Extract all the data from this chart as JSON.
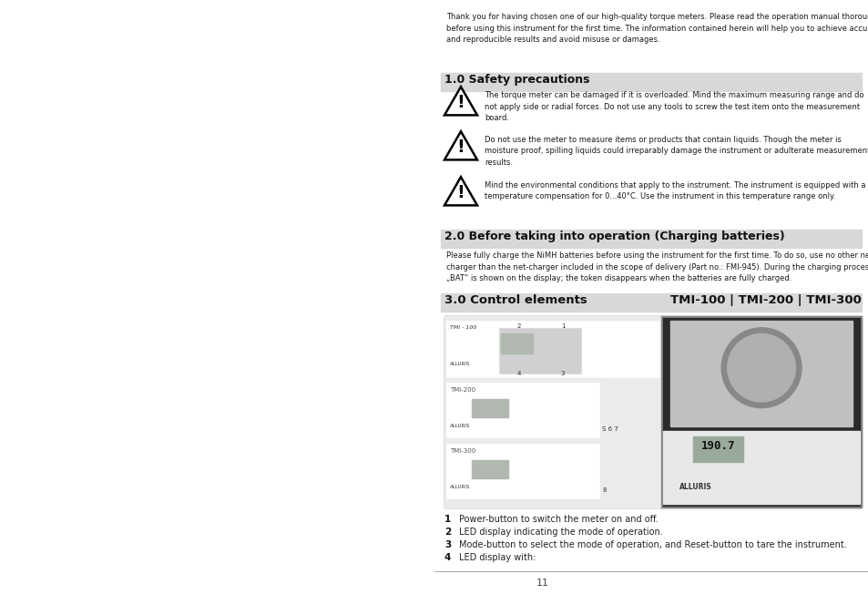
{
  "bg_color": "#ffffff",
  "page_num": "11",
  "intro_text": "Thank you for having chosen one of our high-quality torque meters. Please read the operation manual thoroughly\nbefore using this instrument for the first time. The information contained herein will help you to achieve accurate\nand reproducible results and avoid misuse or damages.",
  "section1_title": "1.0 Safety precautions",
  "section1_bg": "#d8d8d8",
  "warning1": "The torque meter can be damaged if it is overloaded. Mind the maximum measuring range and do\nnot apply side or radial forces. Do not use any tools to screw the test item onto the measurement\nboard.",
  "warning2": "Do not use the meter to measure items or products that contain liquids. Though the meter is\nmoisture proof, spilling liquids could irreparably damage the instrument or adulterate measurement\nresults.",
  "warning3": "Mind the environmental conditions that apply to the instrument. The instrument is equipped with a\ntemperature compensation for 0...40°C. Use the instrument in this temperature range only.",
  "section2_title": "2.0 Before taking into operation (Charging batteries)",
  "section2_bg": "#d8d8d8",
  "section2_text": "Please fully charge the NiMH batteries before using the instrument for the first time. To do so, use no other net-\ncharger than the net-charger included in the scope of delivery (Part no.: FMI-945). During the charging process\n„BAT“ is shown on the display; the token disappears when the batteries are fully charged.",
  "section3_title_left": "3.0 Control elements",
  "section3_title_right": "TMI-100 | TMI-200 | TMI-300",
  "section3_bg": "#d8d8d8",
  "bullet1_num": "1",
  "bullet1_text": "Power-button to switch the meter on and off.",
  "bullet2_num": "2",
  "bullet2_text": "LED display indicating the mode of operation.",
  "bullet3_num": "3",
  "bullet3_text": "Mode-button to select the mode of operation, and Reset-button to tare the instrument.",
  "bullet4_num": "4",
  "bullet4_text": "LED display with:"
}
